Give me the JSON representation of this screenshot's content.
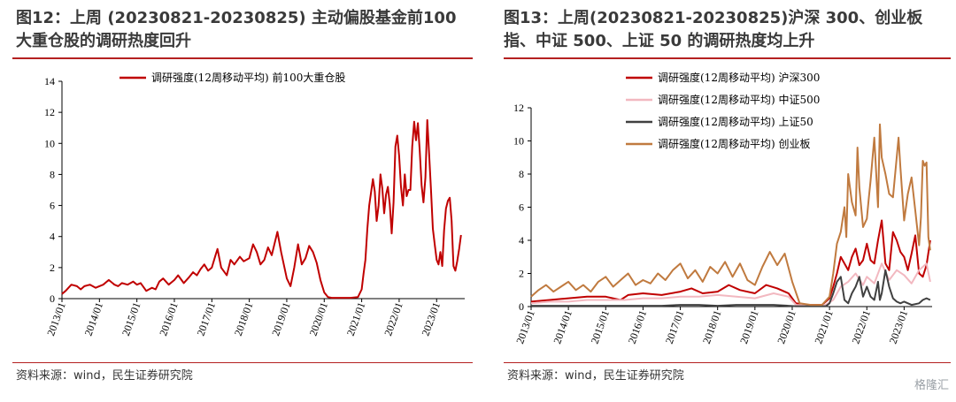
{
  "left": {
    "title": "图12：上周 (20230821-20230825) 主动偏股基金前100 大重仓股的调研热度回升",
    "source": "资料来源：wind，民生证券研究院",
    "chart_data": {
      "type": "line",
      "ylim": [
        0,
        14
      ],
      "yticks": [
        0,
        2,
        4,
        6,
        8,
        10,
        12,
        14
      ],
      "x_ticks": [
        "2013/01",
        "2014/01",
        "2015/01",
        "2016/01",
        "2017/01",
        "2018/01",
        "2019/01",
        "2020/01",
        "2021/01",
        "2022/01",
        "2023/01"
      ],
      "x_range": [
        2013.0,
        2023.75
      ],
      "legend_position": "top",
      "series": [
        {
          "name": "调研强度(12周移动平均) 前100大重仓股",
          "color": "#c00000",
          "x": [
            2013.0,
            2013.1,
            2013.25,
            2013.4,
            2013.5,
            2013.6,
            2013.75,
            2013.9,
            2014.0,
            2014.1,
            2014.25,
            2014.4,
            2014.5,
            2014.6,
            2014.75,
            2014.9,
            2015.0,
            2015.1,
            2015.25,
            2015.4,
            2015.5,
            2015.6,
            2015.7,
            2015.85,
            2016.0,
            2016.1,
            2016.25,
            2016.4,
            2016.5,
            2016.6,
            2016.7,
            2016.8,
            2016.9,
            2017.0,
            2017.1,
            2017.15,
            2017.25,
            2017.4,
            2017.5,
            2017.6,
            2017.75,
            2017.85,
            2018.0,
            2018.1,
            2018.2,
            2018.3,
            2018.4,
            2018.5,
            2018.6,
            2018.75,
            2018.85,
            2019.0,
            2019.1,
            2019.2,
            2019.3,
            2019.4,
            2019.5,
            2019.6,
            2019.7,
            2019.8,
            2019.9,
            2020.0,
            2020.1,
            2020.2,
            2020.3,
            2020.5,
            2020.7,
            2020.9,
            2021.0,
            2021.05,
            2021.1,
            2021.15,
            2021.2,
            2021.3,
            2021.35,
            2021.4,
            2021.45,
            2021.5,
            2021.55,
            2021.6,
            2021.65,
            2021.7,
            2021.75,
            2021.8,
            2021.85,
            2021.9,
            2021.95,
            2022.0,
            2022.05,
            2022.1,
            2022.15,
            2022.2,
            2022.25,
            2022.3,
            2022.35,
            2022.4,
            2022.45,
            2022.5,
            2022.55,
            2022.6,
            2022.65,
            2022.7,
            2022.75,
            2022.8,
            2022.85,
            2022.9,
            2022.95,
            2023.0,
            2023.05,
            2023.1,
            2023.15,
            2023.2,
            2023.25,
            2023.3,
            2023.35,
            2023.4,
            2023.45,
            2023.5,
            2023.55,
            2023.6,
            2023.65
          ],
          "y": [
            0.3,
            0.5,
            0.9,
            0.8,
            0.6,
            0.8,
            0.9,
            0.7,
            0.8,
            0.9,
            1.2,
            0.9,
            0.8,
            1.0,
            0.9,
            1.1,
            0.9,
            1.0,
            0.5,
            0.7,
            0.6,
            1.1,
            1.3,
            0.9,
            1.2,
            1.5,
            1.0,
            1.4,
            1.7,
            1.5,
            1.9,
            2.2,
            1.8,
            2.0,
            2.8,
            3.2,
            2.0,
            1.5,
            2.5,
            2.2,
            2.7,
            2.4,
            2.6,
            3.5,
            3.0,
            2.2,
            2.5,
            3.3,
            2.8,
            4.3,
            3.0,
            1.3,
            0.8,
            2.0,
            3.5,
            2.2,
            2.6,
            3.4,
            3.0,
            2.3,
            1.2,
            0.4,
            0.1,
            0.05,
            0.05,
            0.05,
            0.05,
            0.1,
            0.6,
            1.6,
            2.5,
            4.5,
            6.0,
            7.7,
            6.9,
            5.0,
            6.0,
            8.0,
            7.1,
            5.5,
            6.7,
            7.2,
            6.1,
            4.2,
            6.2,
            9.8,
            10.5,
            9.2,
            7.2,
            6.0,
            8.0,
            6.6,
            7.0,
            7.0,
            9.8,
            11.4,
            10.2,
            11.3,
            9.5,
            7.3,
            6.2,
            7.8,
            11.5,
            9.3,
            7.0,
            4.5,
            3.5,
            2.5,
            2.2,
            3.0,
            2.1,
            4.4,
            5.8,
            6.3,
            6.5,
            5.0,
            2.1,
            1.8,
            2.4,
            3.2,
            4.1
          ]
        }
      ]
    }
  },
  "right": {
    "title": "图13：上周(20230821-20230825)沪深 300、创业板指、中证 500、上证 50 的调研热度均上升",
    "source": "资料来源：wind，民生证券研究院",
    "watermark": "格隆汇",
    "chart_data": {
      "type": "line",
      "ylim": [
        0,
        12
      ],
      "yticks": [
        0,
        2,
        4,
        6,
        8,
        10,
        12
      ],
      "x_ticks": [
        "2013/01",
        "2014/01",
        "2015/01",
        "2016/01",
        "2017/01",
        "2018/01",
        "2019/01",
        "2020/01",
        "2021/01",
        "2022/01",
        "2023/01"
      ],
      "x_range": [
        2013.0,
        2023.75
      ],
      "legend_position": "top-left",
      "series": [
        {
          "name": "调研强度(12周移动平均) 沪深300",
          "color": "#c00000",
          "x": [
            2013.0,
            2013.5,
            2014.0,
            2014.5,
            2015.0,
            2015.4,
            2015.6,
            2016.0,
            2016.5,
            2017.0,
            2017.3,
            2017.6,
            2018.0,
            2018.3,
            2018.6,
            2019.0,
            2019.3,
            2019.6,
            2019.9,
            2020.1,
            2020.4,
            2020.8,
            2021.0,
            2021.1,
            2021.2,
            2021.3,
            2021.4,
            2021.5,
            2021.6,
            2021.7,
            2021.8,
            2021.9,
            2022.0,
            2022.1,
            2022.2,
            2022.3,
            2022.4,
            2022.5,
            2022.6,
            2022.7,
            2022.8,
            2022.9,
            2023.0,
            2023.1,
            2023.2,
            2023.3,
            2023.4,
            2023.5,
            2023.6,
            2023.7
          ],
          "y": [
            0.3,
            0.4,
            0.5,
            0.6,
            0.6,
            0.4,
            0.7,
            0.8,
            0.7,
            0.9,
            1.1,
            0.8,
            0.9,
            1.3,
            1.0,
            0.8,
            1.3,
            1.1,
            0.8,
            0.2,
            0.1,
            0.1,
            0.5,
            1.2,
            2.0,
            3.0,
            2.6,
            2.2,
            3.0,
            3.5,
            2.5,
            2.8,
            3.8,
            2.8,
            2.6,
            4.0,
            5.2,
            2.6,
            2.2,
            4.5,
            4.0,
            3.3,
            3.0,
            2.2,
            3.2,
            4.3,
            2.0,
            1.8,
            2.5,
            4.0
          ]
        },
        {
          "name": "调研强度(12周移动平均) 中证500",
          "color": "#f2b8c0",
          "x": [
            2013.0,
            2013.5,
            2014.0,
            2014.5,
            2015.0,
            2015.5,
            2016.0,
            2016.5,
            2017.0,
            2017.5,
            2018.0,
            2018.5,
            2019.0,
            2019.5,
            2019.9,
            2020.1,
            2020.5,
            2020.9,
            2021.1,
            2021.3,
            2021.5,
            2021.7,
            2021.9,
            2022.0,
            2022.2,
            2022.4,
            2022.6,
            2022.8,
            2023.0,
            2023.2,
            2023.4,
            2023.6,
            2023.7
          ],
          "y": [
            0.2,
            0.3,
            0.3,
            0.4,
            0.4,
            0.4,
            0.5,
            0.5,
            0.6,
            0.6,
            0.7,
            0.6,
            0.5,
            0.8,
            0.6,
            0.1,
            0.05,
            0.1,
            0.4,
            1.2,
            1.5,
            2.0,
            1.3,
            1.8,
            1.4,
            2.6,
            1.6,
            2.2,
            1.9,
            1.4,
            2.2,
            2.6,
            1.5
          ]
        },
        {
          "name": "调研强度(12周移动平均) 上证50",
          "color": "#404040",
          "x": [
            2013.0,
            2013.5,
            2014.0,
            2014.5,
            2015.0,
            2015.5,
            2016.0,
            2016.5,
            2017.0,
            2017.5,
            2018.0,
            2018.5,
            2019.0,
            2019.5,
            2019.9,
            2020.1,
            2020.5,
            2020.9,
            2021.0,
            2021.1,
            2021.2,
            2021.3,
            2021.35,
            2021.4,
            2021.5,
            2021.6,
            2021.7,
            2021.8,
            2021.9,
            2022.0,
            2022.1,
            2022.2,
            2022.3,
            2022.35,
            2022.4,
            2022.5,
            2022.6,
            2022.7,
            2022.8,
            2022.9,
            2023.0,
            2023.2,
            2023.4,
            2023.5,
            2023.6,
            2023.7
          ],
          "y": [
            0.05,
            0.05,
            0.05,
            0.05,
            0.05,
            0.05,
            0.05,
            0.05,
            0.1,
            0.1,
            0.05,
            0.1,
            0.1,
            0.1,
            0.05,
            0.02,
            0.02,
            0.02,
            0.2,
            0.8,
            1.5,
            1.8,
            1.1,
            0.4,
            0.2,
            0.8,
            1.2,
            1.8,
            0.6,
            1.2,
            0.6,
            0.4,
            1.5,
            0.4,
            0.8,
            2.2,
            1.2,
            0.5,
            0.3,
            0.2,
            0.3,
            0.1,
            0.2,
            0.4,
            0.5,
            0.4
          ]
        },
        {
          "name": "调研强度(12周移动平均) 创业板",
          "color": "#c07a3f",
          "x": [
            2013.0,
            2013.2,
            2013.4,
            2013.6,
            2013.8,
            2014.0,
            2014.2,
            2014.4,
            2014.6,
            2014.8,
            2015.0,
            2015.2,
            2015.4,
            2015.6,
            2015.8,
            2016.0,
            2016.2,
            2016.4,
            2016.6,
            2016.8,
            2017.0,
            2017.2,
            2017.4,
            2017.6,
            2017.8,
            2018.0,
            2018.2,
            2018.4,
            2018.6,
            2018.8,
            2019.0,
            2019.2,
            2019.4,
            2019.6,
            2019.8,
            2020.0,
            2020.2,
            2020.5,
            2020.8,
            2021.0,
            2021.1,
            2021.2,
            2021.3,
            2021.4,
            2021.45,
            2021.5,
            2021.6,
            2021.7,
            2021.75,
            2021.8,
            2021.9,
            2022.0,
            2022.05,
            2022.1,
            2022.2,
            2022.3,
            2022.35,
            2022.4,
            2022.5,
            2022.6,
            2022.7,
            2022.8,
            2022.85,
            2022.9,
            2023.0,
            2023.1,
            2023.2,
            2023.3,
            2023.4,
            2023.45,
            2023.5,
            2023.55,
            2023.6,
            2023.65,
            2023.7
          ],
          "y": [
            0.6,
            1.0,
            1.3,
            0.9,
            1.2,
            1.5,
            1.0,
            1.3,
            0.9,
            1.5,
            1.8,
            1.2,
            1.6,
            2.0,
            1.3,
            1.6,
            1.4,
            2.0,
            1.6,
            2.2,
            2.6,
            1.7,
            2.2,
            1.5,
            2.4,
            2.0,
            2.7,
            1.8,
            2.6,
            1.6,
            1.3,
            2.4,
            3.3,
            2.5,
            3.2,
            1.5,
            0.2,
            0.1,
            0.1,
            0.6,
            2.0,
            3.8,
            4.5,
            6.0,
            4.2,
            8.0,
            6.3,
            5.5,
            9.6,
            7.2,
            4.8,
            5.3,
            6.5,
            7.6,
            10.2,
            6.0,
            11.0,
            9.0,
            8.0,
            6.8,
            6.6,
            9.0,
            10.2,
            8.4,
            5.2,
            6.8,
            7.8,
            5.8,
            3.7,
            5.4,
            8.8,
            8.5,
            8.7,
            4.2,
            3.4
          ]
        }
      ]
    }
  }
}
